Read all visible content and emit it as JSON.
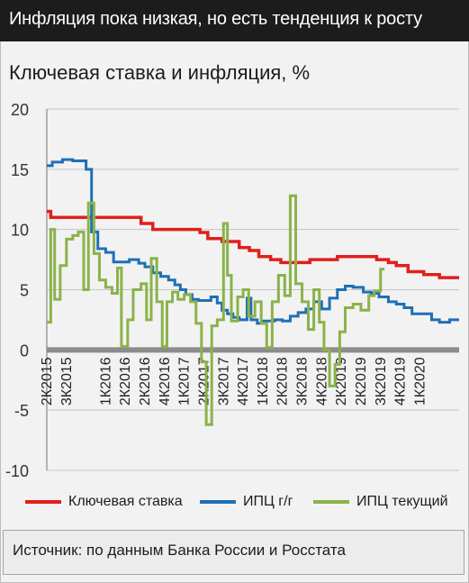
{
  "header": {
    "title": "Инфляция пока низкая, но есть тенденция к росту"
  },
  "chart_title": "Ключевая ставка и инфляция, %",
  "source": "Источник: по данным Банка России и Росстата",
  "chart_data": {
    "type": "line",
    "title": "Ключевая ставка и инфляция, %",
    "ylim": [
      -10,
      20
    ],
    "yticks": [
      20,
      15,
      10,
      5,
      0,
      -5,
      -10
    ],
    "xlim": [
      2015.25,
      2020.5
    ],
    "x_ticks": [
      {
        "label": "2К2015",
        "x": 2015.25
      },
      {
        "label": "3К2015",
        "x": 2015.5
      },
      {
        "label": "1К2016",
        "x": 2016.0
      },
      {
        "label": "2К2016",
        "x": 2016.25
      },
      {
        "label": "2К2016",
        "x": 2016.5
      },
      {
        "label": "4К2016",
        "x": 2016.75
      },
      {
        "label": "1К2017",
        "x": 2017.0
      },
      {
        "label": "2К2017",
        "x": 2017.25
      },
      {
        "label": "3К2017",
        "x": 2017.5
      },
      {
        "label": "4К2017",
        "x": 2017.75
      },
      {
        "label": "1К2018",
        "x": 2018.0
      },
      {
        "label": "2К2018",
        "x": 2018.25
      },
      {
        "label": "3К2018",
        "x": 2018.5
      },
      {
        "label": "4К2018",
        "x": 2018.75
      },
      {
        "label": "2К2019",
        "x": 2019.0
      },
      {
        "label": "2К2019",
        "x": 2019.25
      },
      {
        "label": "3К2019",
        "x": 2019.5
      },
      {
        "label": "4К2019",
        "x": 2019.75
      },
      {
        "label": "1К2020",
        "x": 2020.0
      }
    ],
    "grid": true,
    "legend_position": "bottom",
    "series": [
      {
        "name": "Ключевая ставка",
        "color": "#e0201c",
        "step": true,
        "points": [
          [
            2015.25,
            11.5
          ],
          [
            2015.3,
            11.0
          ],
          [
            2015.55,
            11.0
          ],
          [
            2015.63,
            11.0
          ],
          [
            2016.45,
            10.5
          ],
          [
            2016.6,
            10.0
          ],
          [
            2017.2,
            9.75
          ],
          [
            2017.3,
            9.25
          ],
          [
            2017.48,
            9.0
          ],
          [
            2017.7,
            8.5
          ],
          [
            2017.83,
            8.25
          ],
          [
            2017.95,
            7.75
          ],
          [
            2018.1,
            7.5
          ],
          [
            2018.23,
            7.25
          ],
          [
            2018.6,
            7.5
          ],
          [
            2018.95,
            7.75
          ],
          [
            2019.45,
            7.5
          ],
          [
            2019.6,
            7.25
          ],
          [
            2019.7,
            7.0
          ],
          [
            2019.85,
            6.5
          ],
          [
            2020.05,
            6.25
          ],
          [
            2020.25,
            6.0
          ],
          [
            2020.5,
            6.0
          ]
        ]
      },
      {
        "name": "ИПЦ г/г",
        "color": "#1f6fb5",
        "step": true,
        "points": [
          [
            2015.25,
            15.3
          ],
          [
            2015.32,
            15.6
          ],
          [
            2015.45,
            15.8
          ],
          [
            2015.58,
            15.7
          ],
          [
            2015.75,
            15.0
          ],
          [
            2015.82,
            9.8
          ],
          [
            2015.9,
            8.4
          ],
          [
            2016.0,
            8.1
          ],
          [
            2016.1,
            7.3
          ],
          [
            2016.3,
            7.5
          ],
          [
            2016.42,
            7.2
          ],
          [
            2016.5,
            6.9
          ],
          [
            2016.6,
            6.4
          ],
          [
            2016.7,
            6.1
          ],
          [
            2016.8,
            5.8
          ],
          [
            2016.88,
            5.4
          ],
          [
            2016.95,
            5.0
          ],
          [
            2017.02,
            4.6
          ],
          [
            2017.1,
            4.2
          ],
          [
            2017.18,
            4.1
          ],
          [
            2017.26,
            4.1
          ],
          [
            2017.34,
            4.4
          ],
          [
            2017.42,
            3.9
          ],
          [
            2017.48,
            3.3
          ],
          [
            2017.55,
            3.0
          ],
          [
            2017.62,
            2.7
          ],
          [
            2017.7,
            2.5
          ],
          [
            2017.8,
            4.3
          ],
          [
            2017.85,
            2.5
          ],
          [
            2017.93,
            2.2
          ],
          [
            2018.0,
            2.4
          ],
          [
            2018.15,
            2.5
          ],
          [
            2018.25,
            2.4
          ],
          [
            2018.35,
            2.8
          ],
          [
            2018.45,
            3.1
          ],
          [
            2018.55,
            3.4
          ],
          [
            2018.65,
            4.0
          ],
          [
            2018.75,
            3.4
          ],
          [
            2018.85,
            4.3
          ],
          [
            2018.95,
            5.0
          ],
          [
            2019.05,
            5.3
          ],
          [
            2019.15,
            5.2
          ],
          [
            2019.28,
            4.8
          ],
          [
            2019.38,
            4.7
          ],
          [
            2019.48,
            4.4
          ],
          [
            2019.6,
            4.0
          ],
          [
            2019.7,
            3.8
          ],
          [
            2019.8,
            3.5
          ],
          [
            2019.9,
            3.0
          ],
          [
            2020.05,
            3.0
          ],
          [
            2020.15,
            2.5
          ],
          [
            2020.25,
            2.3
          ],
          [
            2020.38,
            2.5
          ],
          [
            2020.5,
            2.5
          ]
        ]
      },
      {
        "name": "ИПЦ текущий",
        "color": "#8ab34a",
        "step": true,
        "points": [
          [
            2015.25,
            2.3
          ],
          [
            2015.3,
            10.0
          ],
          [
            2015.35,
            4.2
          ],
          [
            2015.42,
            7.0
          ],
          [
            2015.5,
            9.2
          ],
          [
            2015.58,
            9.5
          ],
          [
            2015.65,
            9.8
          ],
          [
            2015.72,
            5.0
          ],
          [
            2015.78,
            12.2
          ],
          [
            2015.85,
            8.0
          ],
          [
            2015.92,
            5.8
          ],
          [
            2016.0,
            5.2
          ],
          [
            2016.08,
            4.7
          ],
          [
            2016.15,
            6.8
          ],
          [
            2016.2,
            0.3
          ],
          [
            2016.28,
            2.5
          ],
          [
            2016.35,
            5.0
          ],
          [
            2016.45,
            5.5
          ],
          [
            2016.52,
            2.5
          ],
          [
            2016.58,
            7.6
          ],
          [
            2016.65,
            4.0
          ],
          [
            2016.72,
            0.3
          ],
          [
            2016.78,
            4.0
          ],
          [
            2016.85,
            4.8
          ],
          [
            2016.92,
            4.2
          ],
          [
            2017.0,
            4.6
          ],
          [
            2017.08,
            4.0
          ],
          [
            2017.15,
            2.2
          ],
          [
            2017.22,
            -1.0
          ],
          [
            2017.28,
            -6.2
          ],
          [
            2017.35,
            2.0
          ],
          [
            2017.42,
            2.5
          ],
          [
            2017.5,
            10.5
          ],
          [
            2017.55,
            6.2
          ],
          [
            2017.6,
            2.4
          ],
          [
            2017.68,
            4.4
          ],
          [
            2017.75,
            5.0
          ],
          [
            2017.82,
            2.8
          ],
          [
            2017.9,
            4.0
          ],
          [
            2017.98,
            2.2
          ],
          [
            2018.05,
            0.2
          ],
          [
            2018.12,
            4.0
          ],
          [
            2018.2,
            6.2
          ],
          [
            2018.28,
            4.5
          ],
          [
            2018.35,
            12.8
          ],
          [
            2018.42,
            5.5
          ],
          [
            2018.5,
            4.0
          ],
          [
            2018.58,
            1.7
          ],
          [
            2018.65,
            5.0
          ],
          [
            2018.72,
            2.3
          ],
          [
            2018.78,
            0.0
          ],
          [
            2018.85,
            -3.0
          ],
          [
            2018.92,
            -1.2
          ],
          [
            2018.98,
            1.5
          ],
          [
            2019.05,
            3.5
          ],
          [
            2019.15,
            3.8
          ],
          [
            2019.25,
            3.3
          ],
          [
            2019.35,
            4.5
          ],
          [
            2019.42,
            4.9
          ],
          [
            2019.5,
            6.7
          ],
          [
            2019.55,
            6.7
          ]
        ]
      }
    ]
  },
  "legend": [
    {
      "label": "Ключевая ставка",
      "color": "#e0201c"
    },
    {
      "label": "ИПЦ г/г",
      "color": "#1f6fb5"
    },
    {
      "label": "ИПЦ текущий",
      "color": "#8ab34a"
    }
  ]
}
